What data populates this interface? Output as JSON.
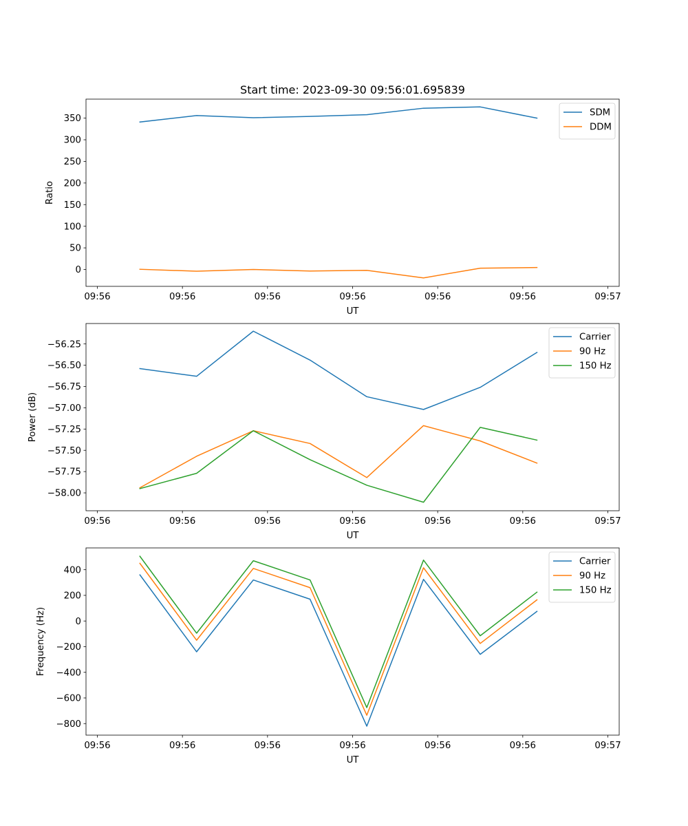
{
  "figure": {
    "title": "Start time: 2023-09-30 09:56:01.695839"
  },
  "chart_data": [
    {
      "type": "line",
      "title": "Start time: 2023-09-30 09:56:01.695839",
      "xlabel": "UT",
      "ylabel": "Ratio",
      "x": [
        1.5,
        3.5,
        5.5,
        7.5,
        9.5,
        11.5,
        13.5,
        15.5
      ],
      "xlim": [
        -0.4,
        18.4
      ],
      "x_ticks": [
        0,
        3,
        6,
        9,
        12,
        15,
        18
      ],
      "x_tick_labels": [
        "09:56",
        "09:56",
        "09:56",
        "09:56",
        "09:56",
        "09:56",
        "09:57"
      ],
      "ylim": [
        -39,
        394
      ],
      "y_ticks": [
        0,
        50,
        100,
        150,
        200,
        250,
        300,
        350
      ],
      "y_tick_labels": [
        "0",
        "50",
        "100",
        "150",
        "200",
        "250",
        "300",
        "350"
      ],
      "legend_position": "top-right",
      "series": [
        {
          "name": "SDM",
          "color": "#1f77b4",
          "values": [
            341,
            356,
            351,
            354,
            358,
            373,
            376,
            350
          ]
        },
        {
          "name": "DDM",
          "color": "#ff7f0e",
          "values": [
            0.5,
            -4,
            0,
            -3.5,
            -2,
            -19.5,
            3,
            4.5
          ]
        }
      ]
    },
    {
      "type": "line",
      "title": "",
      "xlabel": "UT",
      "ylabel": "Power (dB)",
      "x": [
        1.5,
        3.5,
        5.5,
        7.5,
        9.5,
        11.5,
        13.5,
        15.5
      ],
      "xlim": [
        -0.4,
        18.4
      ],
      "x_ticks": [
        0,
        3,
        6,
        9,
        12,
        15,
        18
      ],
      "x_tick_labels": [
        "09:56",
        "09:56",
        "09:56",
        "09:56",
        "09:56",
        "09:56",
        "09:57"
      ],
      "ylim": [
        -58.21,
        -56.01
      ],
      "y_ticks": [
        -58.0,
        -57.75,
        -57.5,
        -57.25,
        -57.0,
        -56.75,
        -56.5,
        -56.25
      ],
      "y_tick_labels": [
        "−58.00",
        "−57.75",
        "−57.50",
        "−57.25",
        "−57.00",
        "−56.75",
        "−56.50",
        "−56.25"
      ],
      "legend_position": "top-right",
      "series": [
        {
          "name": "Carrier",
          "color": "#1f77b4",
          "values": [
            -56.54,
            -56.63,
            -56.1,
            -56.44,
            -56.87,
            -57.02,
            -56.76,
            -56.35
          ]
        },
        {
          "name": "90 Hz",
          "color": "#ff7f0e",
          "values": [
            -57.94,
            -57.57,
            -57.27,
            -57.42,
            -57.82,
            -57.21,
            -57.39,
            -57.65
          ]
        },
        {
          "name": "150 Hz",
          "color": "#2ca02c",
          "values": [
            -57.95,
            -57.77,
            -57.27,
            -57.61,
            -57.91,
            -58.11,
            -57.23,
            -57.38
          ]
        }
      ]
    },
    {
      "type": "line",
      "title": "",
      "xlabel": "UT",
      "ylabel": "Frequency (Hz)",
      "x": [
        1.5,
        3.5,
        5.5,
        7.5,
        9.5,
        11.5,
        13.5,
        15.5
      ],
      "xlim": [
        -0.4,
        18.4
      ],
      "x_ticks": [
        0,
        3,
        6,
        9,
        12,
        15,
        18
      ],
      "x_tick_labels": [
        "09:56",
        "09:56",
        "09:56",
        "09:56",
        "09:56",
        "09:56",
        "09:57"
      ],
      "ylim": [
        -890,
        570
      ],
      "y_ticks": [
        -800,
        -600,
        -400,
        -200,
        0,
        200,
        400
      ],
      "y_tick_labels": [
        "−800",
        "−600",
        "−400",
        "−200",
        "0",
        "200",
        "400"
      ],
      "legend_position": "top-right",
      "series": [
        {
          "name": "Carrier",
          "color": "#1f77b4",
          "values": [
            360,
            -240,
            320,
            170,
            -820,
            325,
            -260,
            75
          ]
        },
        {
          "name": "90 Hz",
          "color": "#ff7f0e",
          "values": [
            450,
            -150,
            410,
            260,
            -735,
            415,
            -175,
            165
          ]
        },
        {
          "name": "150 Hz",
          "color": "#2ca02c",
          "values": [
            505,
            -95,
            470,
            320,
            -675,
            475,
            -115,
            225
          ]
        }
      ]
    }
  ]
}
